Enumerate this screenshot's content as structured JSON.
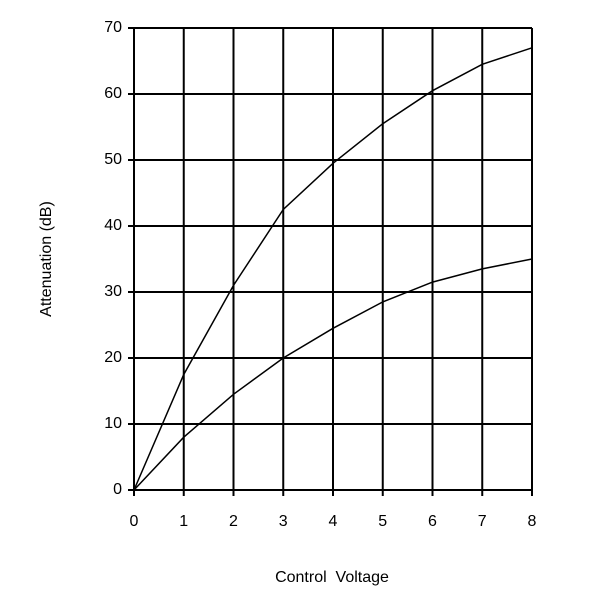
{
  "chart_data": {
    "type": "line",
    "x_label": "Control  Voltage",
    "y_label": "Attenuation (dB)",
    "x": [
      0,
      1,
      2,
      3,
      4,
      5,
      6,
      7,
      8
    ],
    "series": [
      {
        "color": "#000000",
        "values": [
          0,
          17.5,
          31,
          42.5,
          49.5,
          55.5,
          60.5,
          64.5,
          67
        ]
      },
      {
        "color": "#000000",
        "values": [
          0,
          8,
          14.5,
          20,
          24.5,
          28.5,
          31.5,
          33.5,
          35
        ]
      }
    ],
    "xlim": [
      0,
      8
    ],
    "xticks": [
      0,
      1,
      2,
      3,
      4,
      5,
      6,
      7,
      8
    ],
    "ylim": [
      0,
      70
    ],
    "yticks": [
      0,
      10,
      20,
      30,
      40,
      50,
      60,
      70
    ],
    "grid": true
  }
}
